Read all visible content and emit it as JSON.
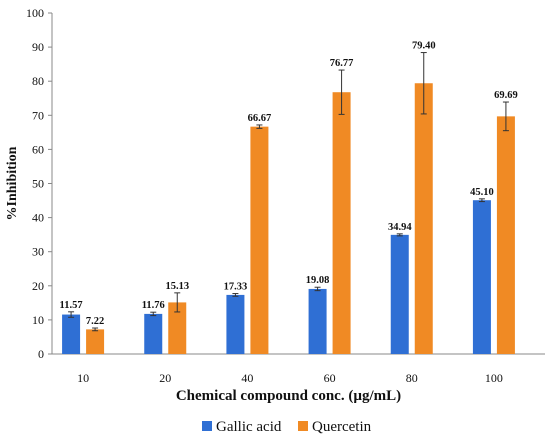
{
  "chart_data": {
    "type": "bar",
    "xlabel": "Chemical compound conc. (µg/mL)",
    "ylabel": "%Inhibition",
    "ylim": [
      0,
      100
    ],
    "yticks": [
      "0",
      "10",
      "20",
      "30",
      "40",
      "50",
      "60",
      "70",
      "80",
      "90",
      "100"
    ],
    "categories": [
      "10",
      "20",
      "40",
      "60",
      "80",
      "100"
    ],
    "legend_position": "bottom",
    "grid": false,
    "series": [
      {
        "name": "Gallic acid",
        "color": "#2f6fd4",
        "values": [
          11.57,
          11.76,
          17.33,
          19.08,
          34.94,
          45.1
        ],
        "labels": [
          "11.57",
          "11.76",
          "17.33",
          "19.08",
          "34.94",
          "45.10"
        ],
        "errors": [
          0.8,
          0.5,
          0.4,
          0.5,
          0.3,
          0.4
        ]
      },
      {
        "name": "Quercetin",
        "color": "#f08a24",
        "values": [
          7.22,
          15.13,
          66.67,
          76.77,
          79.4,
          69.69
        ],
        "labels": [
          "7.22",
          "15.13",
          "66.67",
          "76.77",
          "79.40",
          "69.69"
        ],
        "errors": [
          0.4,
          2.8,
          0.5,
          6.5,
          9.0,
          4.2
        ]
      }
    ]
  }
}
